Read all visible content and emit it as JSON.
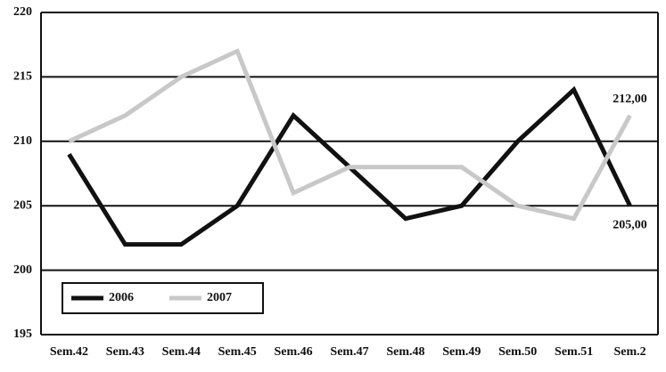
{
  "chart_data": {
    "type": "line",
    "categories": [
      "Sem.42",
      "Sem.43",
      "Sem.44",
      "Sem.45",
      "Sem.46",
      "Sem.47",
      "Sem.48",
      "Sem.49",
      "Sem.50",
      "Sem.51",
      "Sem.2"
    ],
    "series": [
      {
        "name": "2006",
        "color": "#111111",
        "values": [
          209,
          202,
          202,
          205,
          212,
          208,
          204,
          205,
          210,
          214,
          205
        ],
        "value_labels": [
          null,
          null,
          null,
          null,
          null,
          null,
          null,
          null,
          null,
          null,
          "205,00"
        ]
      },
      {
        "name": "2007",
        "color": "#c8c8c8",
        "values": [
          210,
          212,
          215,
          217,
          206,
          208,
          208,
          208,
          205,
          204,
          212
        ],
        "value_labels": [
          null,
          null,
          null,
          null,
          null,
          null,
          null,
          null,
          null,
          null,
          "212,00"
        ]
      }
    ],
    "ylim": [
      195,
      220
    ],
    "yticks": [
      195,
      200,
      205,
      210,
      215,
      220
    ],
    "grid": true,
    "legend": "bottom-left"
  }
}
